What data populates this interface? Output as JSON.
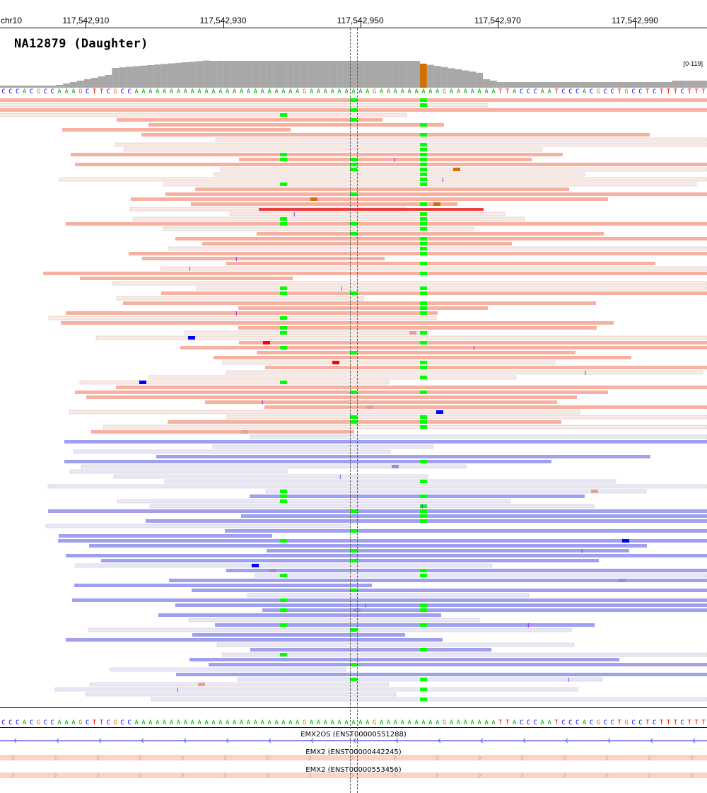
{
  "ruler": {
    "chromosome": "chr10",
    "ticks": [
      {
        "label": "117,542,910",
        "pos": 117542910
      },
      {
        "label": "117,542,930",
        "pos": 117542930
      },
      {
        "label": "117,542,950",
        "pos": 117542950
      },
      {
        "label": "117,542,970",
        "pos": 117542970
      },
      {
        "label": "117,542,990",
        "pos": 117542990
      }
    ],
    "view_start": 117542897.5,
    "view_end": 117543000.5
  },
  "track": {
    "sample_name": "NA12879 (Daughter)",
    "coverage_range": "[0-119]"
  },
  "reference_sequence": "CCCACGCCAAAGCTTCGCCAAAAAAAAAAAAAAAAAAAAAAAAGAAAAAAAAAGAAAAAAAAAGAAAAAAATTACCCAATCCCACGCCTGCCTCTTTCTTTCTGG",
  "colors": {
    "forward_read": "#f8b0a0",
    "reverse_read": "#a0a0f0",
    "forward_low_mapq": "#fbe9e4",
    "reverse_low_mapq": "#e8e8f8",
    "coverage": "#a8a8a8",
    "base_A": "#00aa00",
    "base_C": "#0000ff",
    "base_G": "#d17105",
    "base_T": "#ff0000",
    "mismatch_green": "#00ff00",
    "insertion": "#8000ff",
    "deletion": "#000000"
  },
  "genes": [
    {
      "name": "EMX2OS (ENST00000551288)",
      "strand": "-"
    },
    {
      "name": "EMX2 (ENST00000442245)",
      "strand": "+"
    },
    {
      "name": "EMX2 (ENST00000553456)",
      "strand": "+"
    }
  ]
}
